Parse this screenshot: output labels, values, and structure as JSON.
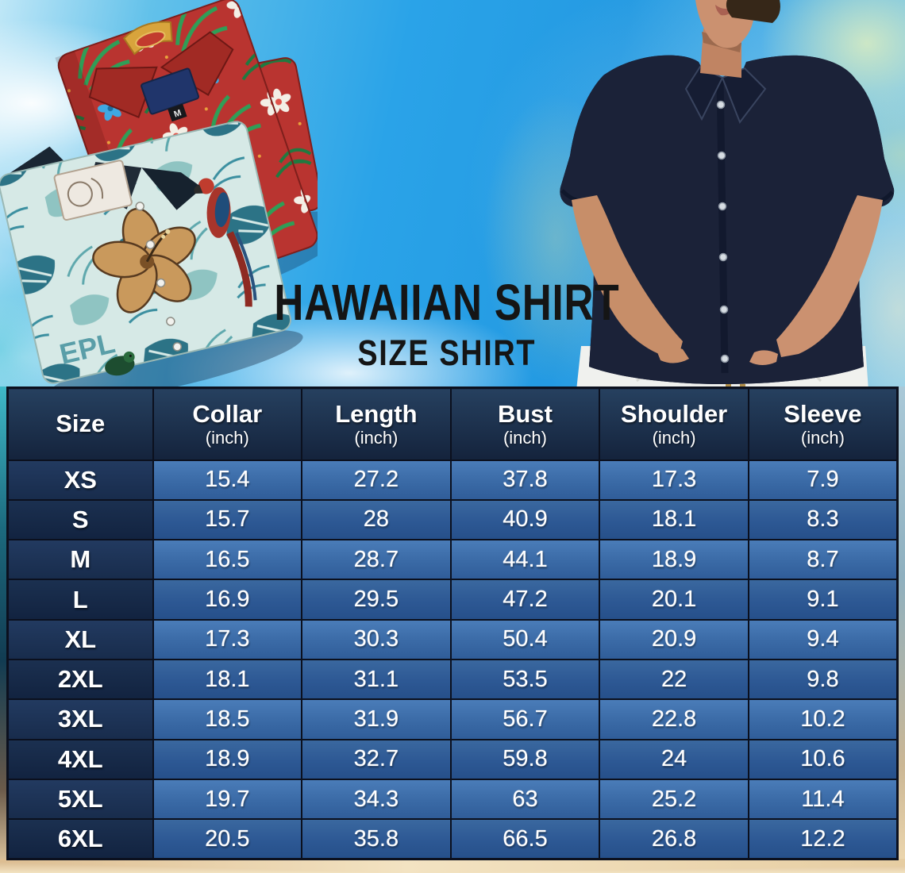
{
  "chart_data": {
    "type": "table",
    "title": "HAWAIIAN SHIRT",
    "subtitle": "SIZE SHIRT",
    "columns": [
      "Size",
      "Collar",
      "Length",
      "Bust",
      "Shoulder",
      "Sleeve"
    ],
    "units": [
      "",
      "(inch)",
      "(inch)",
      "(inch)",
      "(inch)",
      "(inch)"
    ],
    "rows": [
      [
        "XS",
        15.4,
        27.2,
        37.8,
        17.3,
        7.9
      ],
      [
        "S",
        15.7,
        28,
        40.9,
        18.1,
        8.3
      ],
      [
        "M",
        16.5,
        28.7,
        44.1,
        18.9,
        8.7
      ],
      [
        "L",
        16.9,
        29.5,
        47.2,
        20.1,
        9.1
      ],
      [
        "XL",
        17.3,
        30.3,
        50.4,
        20.9,
        9.4
      ],
      [
        "2XL",
        18.1,
        31.1,
        53.5,
        22,
        9.8
      ],
      [
        "3XL",
        18.5,
        31.9,
        56.7,
        22.8,
        10.2
      ],
      [
        "4XL",
        18.9,
        32.7,
        59.8,
        24,
        10.6
      ],
      [
        "5XL",
        19.7,
        34.3,
        63,
        25.2,
        11.4
      ],
      [
        "6XL",
        20.5,
        35.8,
        66.5,
        26.8,
        12.2
      ]
    ],
    "layout": {
      "grid": true,
      "header_position": "top",
      "legend": "none"
    }
  },
  "photos": {
    "red_shirt_neck_tag": "M",
    "teal_shirt_print_text": "EPL"
  },
  "colors": {
    "sky_blue": "#2aa3e8",
    "sand": "#e9d0a8",
    "title_text": "#151515",
    "table_header_bg": "#1b2e4d",
    "table_row_light": "#3f70ae",
    "table_row_dark": "#2d5997",
    "size_column_bg": "#1a2c4a",
    "grid_line": "#0b101e",
    "table_text": "#ffffff",
    "red_shirt": "#b93430",
    "teal_shirt": "#d6e9e6",
    "navy_shirt": "#1b2238",
    "leaf_green": "#3c9b52",
    "flamingo_coral": "#ee7055",
    "pants_white": "#f0f1ee"
  }
}
